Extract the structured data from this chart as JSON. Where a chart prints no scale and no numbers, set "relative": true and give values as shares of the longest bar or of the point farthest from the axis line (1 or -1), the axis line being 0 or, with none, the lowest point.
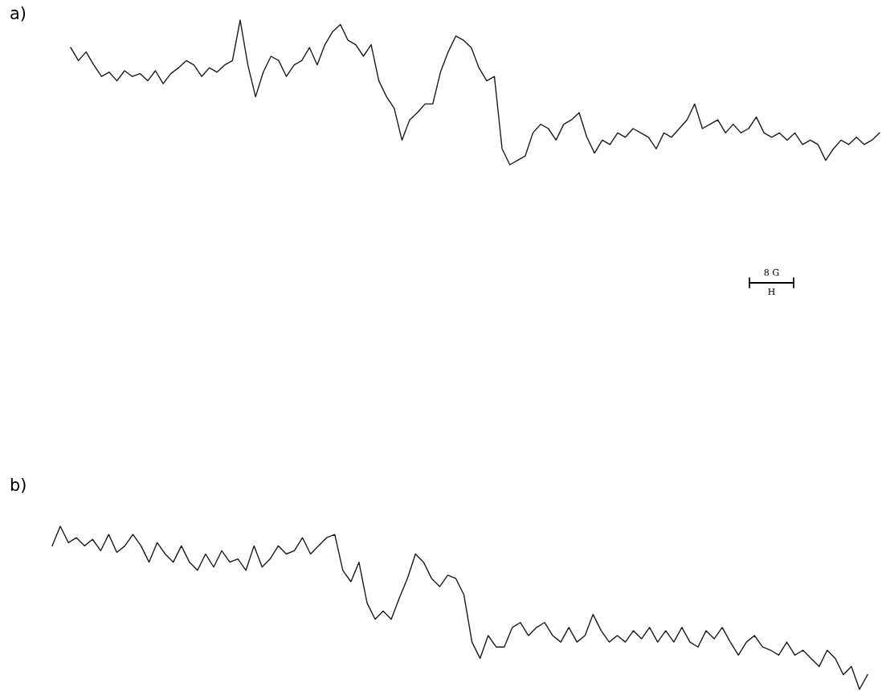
{
  "chart_data": [
    {
      "type": "line",
      "title": "a)",
      "relative": true,
      "color": "#1a1a1a",
      "annotations": [
        "8 G",
        "H"
      ],
      "categories": [
        null,
        null,
        null,
        null,
        null,
        null,
        null,
        null,
        null,
        null,
        null,
        null,
        null,
        null,
        null,
        null,
        null,
        null,
        null,
        null,
        null,
        null,
        null,
        null,
        null,
        null,
        null,
        null,
        null,
        null,
        null,
        null,
        null,
        null,
        null,
        null,
        null,
        null,
        null,
        null,
        null,
        null,
        null,
        null,
        null,
        null,
        null,
        null,
        null,
        null,
        null,
        null,
        null,
        null,
        null,
        null,
        null,
        null,
        null,
        null,
        null,
        null,
        null,
        null,
        null,
        null,
        null,
        null,
        null,
        null,
        null,
        null,
        null,
        null,
        null,
        null,
        null,
        null,
        null,
        null,
        null,
        null,
        null,
        null,
        null,
        null,
        null,
        null,
        null,
        null,
        null,
        null,
        null,
        null,
        null,
        null,
        null,
        null,
        null,
        null,
        null,
        null,
        null,
        null,
        null,
        null
      ],
      "values": [
        0.81,
        0.72,
        0.78,
        0.69,
        0.61,
        0.64,
        0.58,
        0.65,
        0.61,
        0.63,
        0.58,
        0.65,
        0.56,
        0.63,
        0.67,
        0.72,
        0.69,
        0.61,
        0.67,
        0.64,
        0.69,
        0.72,
        1,
        0.69,
        0.47,
        0.64,
        0.75,
        0.72,
        0.61,
        0.69,
        0.72,
        0.81,
        0.69,
        0.83,
        0.92,
        0.97,
        0.86,
        0.83,
        0.75,
        0.83,
        0.58,
        0.47,
        0.39,
        0.17,
        0.31,
        0.36,
        0.42,
        0.42,
        0.64,
        0.78,
        0.89,
        0.86,
        0.81,
        0.67,
        0.58,
        0.61,
        0.11,
        0,
        0.03,
        0.06,
        0.22,
        0.28,
        0.25,
        0.17,
        0.28,
        0.31,
        0.36,
        0.19,
        0.08,
        0.17,
        0.14,
        0.22,
        0.19,
        0.25,
        0.22,
        0.19,
        0.11,
        0.22,
        0.19,
        0.25,
        0.31,
        0.42,
        0.25,
        0.28,
        0.31,
        0.22,
        0.28,
        0.22,
        0.25,
        0.33,
        0.22,
        0.19,
        0.22,
        0.17,
        0.22,
        0.14,
        0.17,
        0.14,
        0.03,
        0.11,
        0.17,
        0.14,
        0.19,
        0.14,
        0.17,
        0.22
      ]
    },
    {
      "type": "line",
      "title": "b)",
      "relative": true,
      "color": "#1a1a1a",
      "categories": [
        null,
        null,
        null,
        null,
        null,
        null,
        null,
        null,
        null,
        null,
        null,
        null,
        null,
        null,
        null,
        null,
        null,
        null,
        null,
        null,
        null,
        null,
        null,
        null,
        null,
        null,
        null,
        null,
        null,
        null,
        null,
        null,
        null,
        null,
        null,
        null,
        null,
        null,
        null,
        null,
        null,
        null,
        null,
        null,
        null,
        null,
        null,
        null,
        null,
        null,
        null,
        null,
        null,
        null,
        null,
        null,
        null,
        null,
        null,
        null,
        null,
        null,
        null,
        null,
        null,
        null,
        null,
        null,
        null,
        null,
        null,
        null,
        null,
        null,
        null,
        null,
        null,
        null,
        null,
        null,
        null,
        null,
        null,
        null,
        null,
        null,
        null,
        null,
        null,
        null,
        null,
        null,
        null,
        null,
        null,
        null,
        null,
        null,
        null,
        null,
        null,
        null
      ],
      "values": [
        0.88,
        1,
        0.9,
        0.93,
        0.88,
        0.92,
        0.85,
        0.95,
        0.84,
        0.88,
        0.95,
        0.88,
        0.78,
        0.9,
        0.83,
        0.78,
        0.88,
        0.78,
        0.73,
        0.83,
        0.75,
        0.85,
        0.78,
        0.8,
        0.73,
        0.88,
        0.75,
        0.8,
        0.88,
        0.83,
        0.85,
        0.93,
        0.83,
        0.88,
        0.93,
        0.95,
        0.73,
        0.66,
        0.78,
        0.53,
        0.43,
        0.48,
        0.43,
        0.56,
        0.68,
        0.83,
        0.78,
        0.68,
        0.63,
        0.7,
        0.68,
        0.58,
        0.29,
        0.19,
        0.33,
        0.26,
        0.26,
        0.38,
        0.41,
        0.33,
        0.38,
        0.41,
        0.33,
        0.29,
        0.38,
        0.29,
        0.33,
        0.46,
        0.36,
        0.29,
        0.33,
        0.29,
        0.36,
        0.31,
        0.38,
        0.29,
        0.36,
        0.29,
        0.38,
        0.29,
        0.26,
        0.36,
        0.31,
        0.38,
        0.29,
        0.21,
        0.29,
        0.33,
        0.26,
        0.24,
        0.21,
        0.29,
        0.21,
        0.24,
        0.19,
        0.14,
        0.24,
        0.19,
        0.09,
        0.14,
        0,
        0.09
      ]
    }
  ]
}
